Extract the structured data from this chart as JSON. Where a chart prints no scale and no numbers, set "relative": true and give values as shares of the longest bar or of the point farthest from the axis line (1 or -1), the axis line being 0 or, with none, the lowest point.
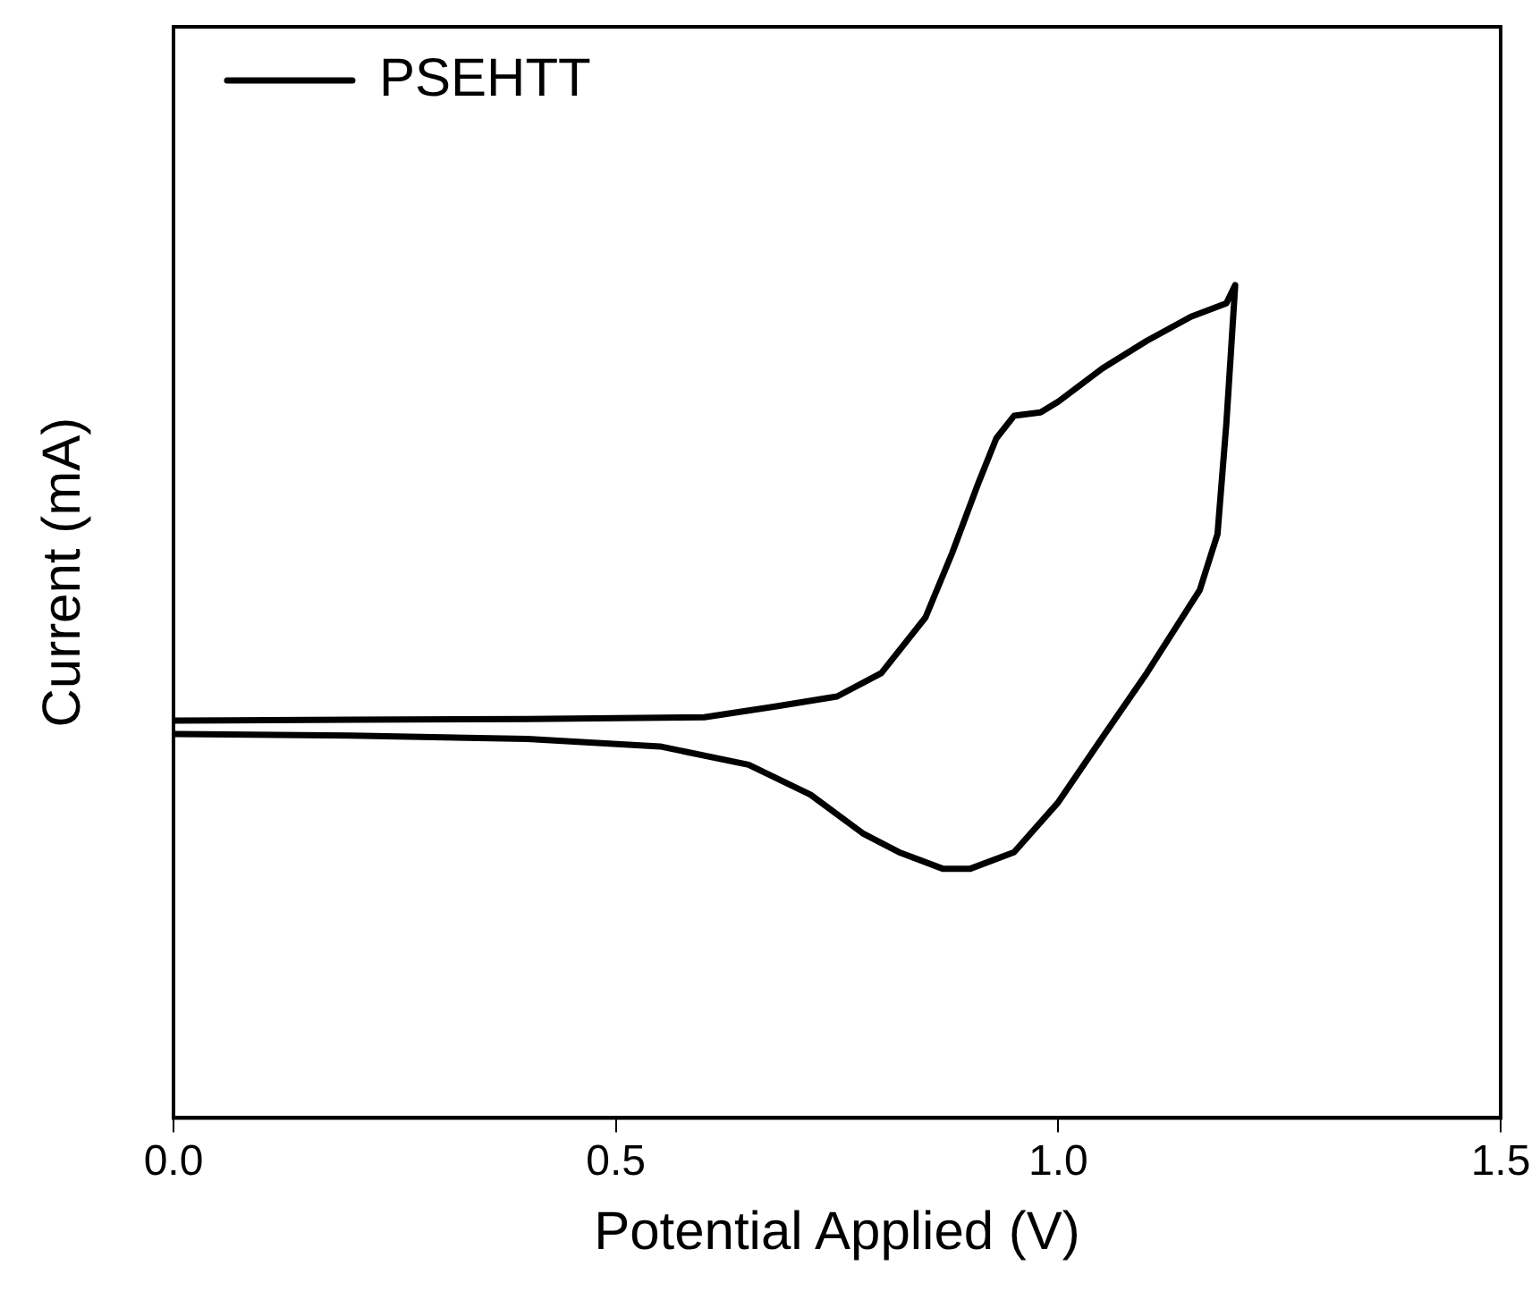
{
  "chart_data": {
    "type": "line",
    "xlabel": "Potential Applied (V)",
    "ylabel": "Current (mA)",
    "relative": true,
    "xlim": [
      0,
      1.5
    ],
    "xticks": [
      {
        "value": 0,
        "label": "0.0"
      },
      {
        "value": 0.5,
        "label": "0.5"
      },
      {
        "value": 1,
        "label": "1.0"
      },
      {
        "value": 1.5,
        "label": "1.5"
      }
    ],
    "grid": false,
    "legend": "top left",
    "marker": "none",
    "line_style": "solid",
    "series": [
      {
        "name": "PSEHTT",
        "color": "#000000",
        "x": [
          0,
          0.2,
          0.4,
          0.6,
          0.68,
          0.75,
          0.8,
          0.85,
          0.88,
          0.91,
          0.93,
          0.95,
          0.98,
          1.0,
          1.05,
          1.1,
          1.15,
          1.19,
          1.2,
          1.19,
          1.18,
          1.16,
          1.1,
          1.05,
          1.0,
          0.95,
          0.9,
          0.87,
          0.82,
          0.78,
          0.72,
          0.65,
          0.55,
          0.4,
          0.2,
          0
        ],
        "values": [
          0.477,
          0.478,
          0.479,
          0.481,
          0.494,
          0.506,
          0.534,
          0.601,
          0.678,
          0.763,
          0.816,
          0.843,
          0.847,
          0.86,
          0.9,
          0.933,
          0.962,
          0.978,
          1,
          0.834,
          0.701,
          0.634,
          0.534,
          0.457,
          0.379,
          0.319,
          0.299,
          0.299,
          0.319,
          0.341,
          0.388,
          0.424,
          0.446,
          0.455,
          0.459,
          0.461
        ]
      }
    ]
  }
}
